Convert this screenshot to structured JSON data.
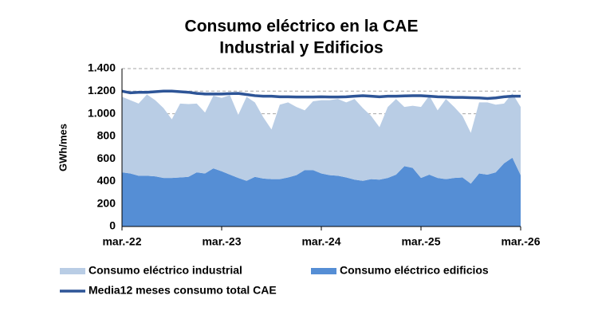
{
  "chart_data": {
    "type": "stacked-area",
    "title": "Consumo eléctrico en la CAE",
    "subtitle": "Industrial y Edificios",
    "ylabel": "GWh/mes",
    "categories": [
      "mar.-22",
      null,
      null,
      null,
      null,
      null,
      null,
      null,
      null,
      null,
      null,
      null,
      "mar.-23",
      null,
      null,
      null,
      null,
      null,
      null,
      null,
      null,
      null,
      null,
      null,
      "mar.-24",
      null,
      null,
      null,
      null,
      null,
      null,
      null,
      null,
      null,
      null,
      null,
      "mar.-25",
      null,
      null,
      null,
      null,
      null,
      null,
      null,
      null,
      null,
      null,
      null,
      "mar.-26"
    ],
    "series": [
      {
        "name": "Consumo eléctrico edificios",
        "color": "#558ed5",
        "kind": "area",
        "values": [
          480,
          470,
          450,
          450,
          445,
          430,
          430,
          435,
          440,
          480,
          470,
          515,
          490,
          460,
          430,
          405,
          440,
          425,
          420,
          420,
          435,
          455,
          500,
          500,
          470,
          455,
          450,
          435,
          415,
          405,
          420,
          415,
          430,
          460,
          535,
          520,
          430,
          460,
          430,
          420,
          430,
          435,
          380,
          470,
          460,
          480,
          560,
          610,
          455
        ]
      },
      {
        "name": "Consumo eléctrico industrial",
        "color": "#b9cde5",
        "kind": "area",
        "values": [
          670,
          650,
          640,
          720,
          675,
          620,
          520,
          655,
          645,
          610,
          540,
          645,
          650,
          705,
          560,
          745,
          660,
          545,
          440,
          660,
          665,
          605,
          530,
          610,
          650,
          665,
          680,
          665,
          715,
          645,
          560,
          465,
          630,
          670,
          525,
          550,
          630,
          700,
          600,
          710,
          630,
          545,
          450,
          630,
          640,
          600,
          530,
          570,
          605
        ]
      },
      {
        "name": "Media12 meses consumo total CAE",
        "color": "#2e5597",
        "kind": "line",
        "values": [
          1200,
          1185,
          1190,
          1190,
          1195,
          1200,
          1200,
          1195,
          1190,
          1180,
          1175,
          1175,
          1175,
          1178,
          1180,
          1170,
          1160,
          1155,
          1155,
          1150,
          1150,
          1148,
          1148,
          1148,
          1150,
          1148,
          1148,
          1150,
          1155,
          1160,
          1155,
          1150,
          1155,
          1155,
          1158,
          1160,
          1160,
          1155,
          1150,
          1148,
          1145,
          1145,
          1142,
          1140,
          1135,
          1140,
          1150,
          1155,
          1155
        ]
      }
    ],
    "legend_order": [
      1,
      0,
      2
    ],
    "ylim": [
      0,
      1400
    ],
    "yticks": [
      0,
      200,
      400,
      600,
      800,
      {
        "value": 1000,
        "label": "1.000"
      },
      {
        "value": 1200,
        "label": "1.200"
      },
      {
        "value": 1400,
        "label": "1.400"
      }
    ],
    "grid": true
  }
}
